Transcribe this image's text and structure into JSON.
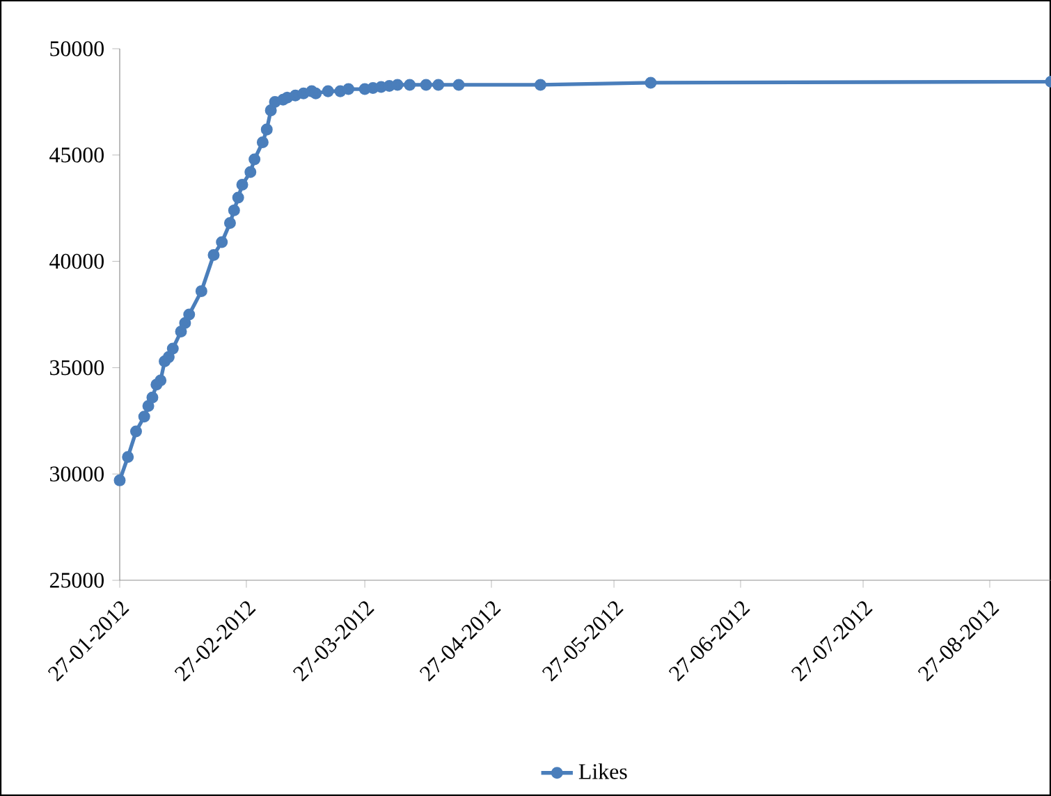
{
  "chart_data": {
    "type": "line",
    "x": [
      "2012-01-27",
      "2012-01-29",
      "2012-01-31",
      "2012-02-02",
      "2012-02-03",
      "2012-02-04",
      "2012-02-05",
      "2012-02-06",
      "2012-02-07",
      "2012-02-08",
      "2012-02-09",
      "2012-02-11",
      "2012-02-12",
      "2012-02-13",
      "2012-02-16",
      "2012-02-19",
      "2012-02-21",
      "2012-02-23",
      "2012-02-24",
      "2012-02-25",
      "2012-02-26",
      "2012-02-28",
      "2012-02-29",
      "2012-03-02",
      "2012-03-03",
      "2012-03-04",
      "2012-03-05",
      "2012-03-07",
      "2012-03-08",
      "2012-03-10",
      "2012-03-12",
      "2012-03-14",
      "2012-03-15",
      "2012-03-18",
      "2012-03-21",
      "2012-03-23",
      "2012-03-27",
      "2012-03-29",
      "2012-03-31",
      "2012-04-02",
      "2012-04-04",
      "2012-04-07",
      "2012-04-11",
      "2012-04-14",
      "2012-04-19",
      "2012-05-09",
      "2012-06-05",
      "2012-09-11"
    ],
    "series": [
      {
        "name": "Likes",
        "color": "#4a7ebb",
        "values": [
          29700,
          30800,
          32000,
          32700,
          33200,
          33600,
          34200,
          34400,
          35300,
          35500,
          35900,
          36700,
          37100,
          37500,
          38600,
          40300,
          40900,
          41800,
          42400,
          43000,
          43600,
          44200,
          44800,
          45600,
          46200,
          47100,
          47500,
          47600,
          47700,
          47800,
          47900,
          48000,
          47900,
          48000,
          48000,
          48100,
          48100,
          48150,
          48200,
          48250,
          48300,
          48300,
          48300,
          48300,
          48300,
          48300,
          48400,
          48450
        ]
      }
    ],
    "xlim": [
      "2012-01-27",
      "2012-09-11"
    ],
    "xticks": [
      {
        "value": "2012-01-27",
        "label": "27-01-2012"
      },
      {
        "value": "2012-02-27",
        "label": "27-02-2012"
      },
      {
        "value": "2012-03-27",
        "label": "27-03-2012"
      },
      {
        "value": "2012-04-27",
        "label": "27-04-2012"
      },
      {
        "value": "2012-05-27",
        "label": "27-05-2012"
      },
      {
        "value": "2012-06-27",
        "label": "27-06-2012"
      },
      {
        "value": "2012-07-27",
        "label": "27-07-2012"
      },
      {
        "value": "2012-08-27",
        "label": "27-08-2012"
      }
    ],
    "ylim": [
      25000,
      50000
    ],
    "yticks": [
      25000,
      30000,
      35000,
      40000,
      45000,
      50000
    ],
    "grid": false,
    "legend": "bottom",
    "marker": "circle",
    "line_style": "solid"
  }
}
